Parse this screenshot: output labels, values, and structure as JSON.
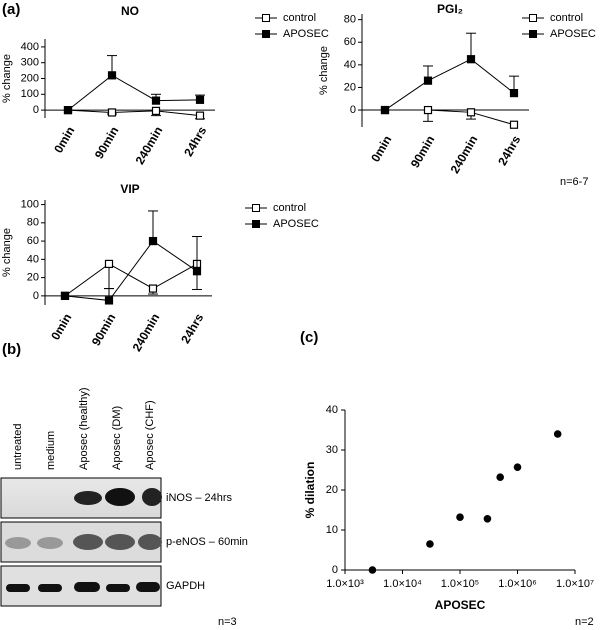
{
  "chart_data": [
    {
      "type": "line",
      "title": "NO",
      "y_label": "% change",
      "categories": [
        "0min",
        "90min",
        "240min",
        "24hrs"
      ],
      "series": [
        {
          "name": "control",
          "color": "#000000",
          "marker_fill": "#ffffff",
          "error_side": "down",
          "values": [
            0,
            -15,
            -5,
            -35
          ],
          "errors": [
            null,
            10,
            30,
            20
          ]
        },
        {
          "name": "APOSEC",
          "color": "#000000",
          "marker_fill": "#000000",
          "error_side": "up",
          "values": [
            0,
            220,
            60,
            65
          ],
          "errors": [
            null,
            125,
            40,
            30
          ]
        }
      ],
      "ylim": [
        -50,
        450
      ],
      "yticks": [
        0,
        100,
        200,
        300,
        400
      ]
    },
    {
      "type": "line",
      "title": "PGI₂",
      "y_label": "% change",
      "categories": [
        "0min",
        "90min",
        "240min",
        "24hrs"
      ],
      "series": [
        {
          "name": "control",
          "color": "#000000",
          "marker_fill": "#ffffff",
          "error_side": "down",
          "values": [
            0,
            0,
            -2,
            -13
          ],
          "errors": [
            null,
            10,
            6,
            null
          ]
        },
        {
          "name": "APOSEC",
          "color": "#000000",
          "marker_fill": "#000000",
          "error_side": "up",
          "values": [
            0,
            26,
            45,
            15
          ],
          "errors": [
            null,
            13,
            23,
            15
          ]
        }
      ],
      "ylim": [
        -15,
        85
      ],
      "yticks": [
        0,
        20,
        40,
        60,
        80
      ]
    },
    {
      "type": "line",
      "title": "VIP",
      "y_label": "% change",
      "categories": [
        "0min",
        "90min",
        "240min",
        "24hrs"
      ],
      "series": [
        {
          "name": "control",
          "color": "#000000",
          "marker_fill": "#ffffff",
          "error_side": "down",
          "values": [
            0,
            35,
            8,
            35
          ],
          "errors": [
            null,
            27,
            6,
            28
          ]
        },
        {
          "name": "APOSEC",
          "color": "#000000",
          "marker_fill": "#000000",
          "error_side": "up",
          "values": [
            0,
            -5,
            60,
            27
          ],
          "errors": [
            null,
            13,
            33,
            38
          ]
        }
      ],
      "ylim": [
        -10,
        105
      ],
      "yticks": [
        0,
        20,
        40,
        60,
        80,
        100
      ]
    },
    {
      "type": "scatter",
      "x_label": "APOSEC",
      "y_label": "% dilation",
      "log_x": true,
      "color": "#000000",
      "x": [
        3000,
        30000,
        100000,
        300000,
        500000,
        1000000,
        5000000
      ],
      "values": [
        0,
        6.5,
        13.2,
        12.8,
        23.2,
        25.7,
        34
      ],
      "xlim": [
        1000,
        10000000
      ],
      "xticks": [
        {
          "value": 1000,
          "label": "1.0×10³"
        },
        {
          "value": 10000,
          "label": "1.0×10⁴"
        },
        {
          "value": 100000,
          "label": "1.0×10⁵"
        },
        {
          "value": 1000000,
          "label": "1.0×10⁶"
        },
        {
          "value": 10000000,
          "label": "1.0×10⁷"
        }
      ],
      "ylim": [
        0,
        40
      ],
      "yticks": [
        0,
        10,
        20,
        30,
        40
      ]
    }
  ],
  "panel_labels": [
    "(a)",
    "(b)",
    "(c)"
  ],
  "notes": [
    "n=6-7",
    "n=3",
    "n=2"
  ],
  "blot": {
    "lanes": [
      "untreated",
      "medium",
      "Aposec (healthy)",
      "Aposec (DM)",
      "Aposec (CHF)"
    ],
    "rows": [
      "iNOS – 24hrs",
      "p-eNOS – 60min",
      "GAPDH"
    ]
  }
}
